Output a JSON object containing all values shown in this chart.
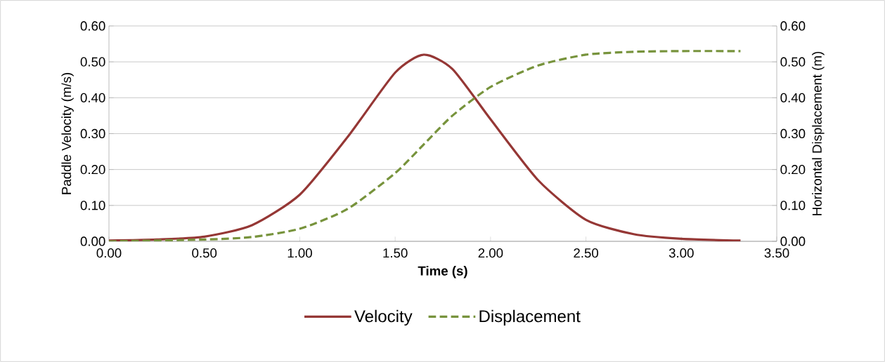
{
  "chart_data": {
    "type": "line",
    "xlabel": "Time (s)",
    "ylabel": "Paddle Velocity (m/s)",
    "y2label": "Horizontal Displacement (m)",
    "xlim": [
      0,
      3.5
    ],
    "xticks": [
      {
        "value": 0,
        "label": "0.00"
      },
      {
        "value": 0.5,
        "label": "0.50"
      },
      {
        "value": 1,
        "label": "1.00"
      },
      {
        "value": 1.5,
        "label": "1.50"
      },
      {
        "value": 2,
        "label": "2.00"
      },
      {
        "value": 2.5,
        "label": "2.50"
      },
      {
        "value": 3,
        "label": "3.00"
      },
      {
        "value": 3.5,
        "label": "3.50"
      }
    ],
    "ylim": [
      0,
      0.6
    ],
    "yticks": [
      {
        "value": 0,
        "label": "0.00"
      },
      {
        "value": 0.1,
        "label": "0.10"
      },
      {
        "value": 0.2,
        "label": "0.20"
      },
      {
        "value": 0.3,
        "label": "0.30"
      },
      {
        "value": 0.4,
        "label": "0.40"
      },
      {
        "value": 0.5,
        "label": "0.50"
      },
      {
        "value": 0.6,
        "label": "0.60"
      }
    ],
    "y2lim": [
      0,
      0.6
    ],
    "y2ticks": [
      {
        "value": 0,
        "label": "0.00"
      },
      {
        "value": 0.1,
        "label": "0.10"
      },
      {
        "value": 0.2,
        "label": "0.20"
      },
      {
        "value": 0.3,
        "label": "0.30"
      },
      {
        "value": 0.4,
        "label": "0.40"
      },
      {
        "value": 0.5,
        "label": "0.50"
      },
      {
        "value": 0.6,
        "label": "0.60"
      }
    ],
    "grid": "y",
    "legend": "bottom",
    "marker": "none",
    "series": [
      {
        "name": "Velocity",
        "color": "#953735",
        "line_style": "solid",
        "x": [
          0,
          0.25,
          0.5,
          0.75,
          1.0,
          1.25,
          1.5,
          1.65,
          1.8,
          2.0,
          2.25,
          2.5,
          2.75,
          3.0,
          3.31
        ],
        "values": [
          0.002,
          0.005,
          0.013,
          0.045,
          0.13,
          0.29,
          0.47,
          0.52,
          0.48,
          0.34,
          0.17,
          0.06,
          0.02,
          0.007,
          0.002
        ]
      },
      {
        "name": "Displacement",
        "color": "#77933c",
        "line_style": "dashed",
        "axis": "y2",
        "x": [
          0,
          0.5,
          0.75,
          1.0,
          1.25,
          1.5,
          1.65,
          1.8,
          2.0,
          2.25,
          2.5,
          2.75,
          3.0,
          3.31
        ],
        "values": [
          0,
          0.005,
          0.012,
          0.035,
          0.09,
          0.19,
          0.27,
          0.35,
          0.43,
          0.49,
          0.52,
          0.528,
          0.53,
          0.53
        ]
      }
    ]
  }
}
